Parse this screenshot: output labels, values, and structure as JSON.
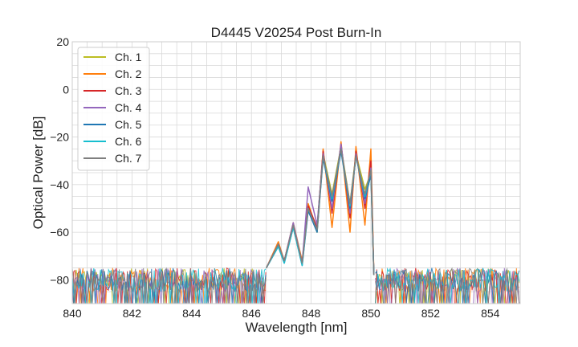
{
  "chart_data": {
    "type": "line",
    "title": "D4445 V20254 Post Burn-In",
    "xlabel": "Wavelength [nm]",
    "ylabel": "Optical Power [dB]",
    "xlim": [
      840,
      855
    ],
    "ylim": [
      -90,
      20
    ],
    "xticks": [
      840,
      842,
      844,
      846,
      848,
      850,
      852,
      854
    ],
    "yticks": [
      20,
      0,
      -20,
      -40,
      -60,
      -80
    ],
    "grid": true,
    "legend_position": "top-left",
    "noise_floor_db": -80,
    "series": [
      {
        "name": "Ch. 1",
        "color": "#bcbd22",
        "x": [
          846.5,
          846.9,
          847.1,
          847.4,
          847.7,
          847.9,
          848.2,
          848.4,
          848.7,
          849.0,
          849.3,
          849.5,
          849.8,
          850.0,
          850.1
        ],
        "y": [
          -75,
          -65,
          -72,
          -57,
          -73,
          -50,
          -60,
          -27,
          -44,
          -24,
          -48,
          -27,
          -42,
          -35,
          -78
        ]
      },
      {
        "name": "Ch. 2",
        "color": "#ff7f0e",
        "x": [
          846.5,
          846.9,
          847.1,
          847.4,
          847.7,
          847.9,
          848.2,
          848.4,
          848.7,
          849.0,
          849.3,
          849.5,
          849.8,
          850.0,
          850.1
        ],
        "y": [
          -75,
          -64,
          -72,
          -56,
          -72,
          -48,
          -59,
          -25,
          -58,
          -22,
          -60,
          -24,
          -57,
          -25,
          -77
        ]
      },
      {
        "name": "Ch. 3",
        "color": "#d62728",
        "x": [
          846.5,
          846.9,
          847.1,
          847.4,
          847.7,
          847.9,
          848.2,
          848.4,
          848.7,
          849.0,
          849.3,
          849.5,
          849.8,
          850.0,
          850.1
        ],
        "y": [
          -75,
          -65,
          -72,
          -57,
          -73,
          -49,
          -58,
          -26,
          -52,
          -23,
          -54,
          -26,
          -50,
          -30,
          -78
        ]
      },
      {
        "name": "Ch. 4",
        "color": "#9467bd",
        "x": [
          846.5,
          846.9,
          847.1,
          847.4,
          847.7,
          847.9,
          848.2,
          848.4,
          848.7,
          849.0,
          849.3,
          849.5,
          849.8,
          850.0,
          850.1
        ],
        "y": [
          -75,
          -65,
          -72,
          -56,
          -73,
          -41,
          -57,
          -27,
          -50,
          -23,
          -52,
          -27,
          -48,
          -33,
          -78
        ]
      },
      {
        "name": "Ch. 5",
        "color": "#1f77b4",
        "x": [
          846.5,
          846.9,
          847.1,
          847.4,
          847.7,
          847.9,
          848.2,
          848.4,
          848.7,
          849.0,
          849.3,
          849.5,
          849.8,
          850.0,
          850.1
        ],
        "y": [
          -75,
          -66,
          -73,
          -58,
          -74,
          -51,
          -60,
          -29,
          -47,
          -26,
          -50,
          -28,
          -46,
          -36,
          -78
        ]
      },
      {
        "name": "Ch. 6",
        "color": "#17becf",
        "x": [
          846.5,
          846.9,
          847.1,
          847.4,
          847.7,
          847.9,
          848.2,
          848.4,
          848.7,
          849.0,
          849.3,
          849.5,
          849.8,
          850.0,
          850.1
        ],
        "y": [
          -75,
          -66,
          -73,
          -58,
          -74,
          -50,
          -59,
          -28,
          -46,
          -25,
          -49,
          -28,
          -45,
          -34,
          -78
        ]
      },
      {
        "name": "Ch. 7",
        "color": "#7f7f7f",
        "x": [
          846.5,
          846.9,
          847.1,
          847.4,
          847.7,
          847.9,
          848.2,
          848.4,
          848.7,
          849.0,
          849.3,
          849.5,
          849.8,
          850.0,
          850.1
        ],
        "y": [
          -75,
          -65,
          -72,
          -57,
          -73,
          -50,
          -59,
          -28,
          -45,
          -25,
          -48,
          -28,
          -44,
          -34,
          -78
        ]
      }
    ]
  }
}
